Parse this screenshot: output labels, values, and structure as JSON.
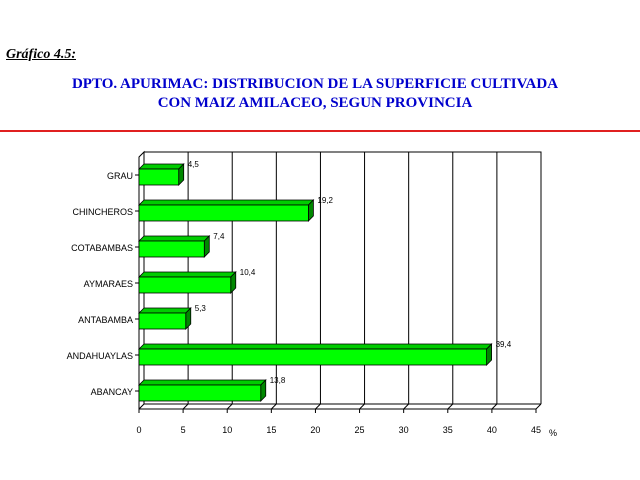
{
  "figure_label": "Gráfico 4.5:",
  "title_line1": "DPTO. APURIMAC: DISTRIBUCION DE LA SUPERFICIE CULTIVADA",
  "title_line2": "CON MAIZ AMILACEO, SEGUN PROVINCIA",
  "colors": {
    "title": "#0000cc",
    "rule": "#e02020",
    "bar_front": "#00ff00",
    "bar_top": "#00cc00",
    "bar_side": "#008800",
    "bar_outline": "#000000"
  },
  "chart_data": {
    "type": "bar",
    "orientation": "horizontal",
    "style": "3d",
    "categories": [
      "GRAU",
      "CHINCHEROS",
      "COTABAMBAS",
      "AYMARAES",
      "ANTABAMBA",
      "ANDAHUAYLAS",
      "ABANCAY"
    ],
    "values": [
      4.5,
      19.2,
      7.4,
      10.4,
      5.3,
      39.4,
      13.8
    ],
    "value_labels": [
      "4,5",
      "19,2",
      "7,4",
      "10,4",
      "5,3",
      "39,4",
      "13,8"
    ],
    "xlim": [
      0,
      45
    ],
    "xticks": [
      0,
      5,
      10,
      15,
      20,
      25,
      30,
      35,
      40,
      45
    ],
    "xunit": "%",
    "grid": "vertical"
  }
}
